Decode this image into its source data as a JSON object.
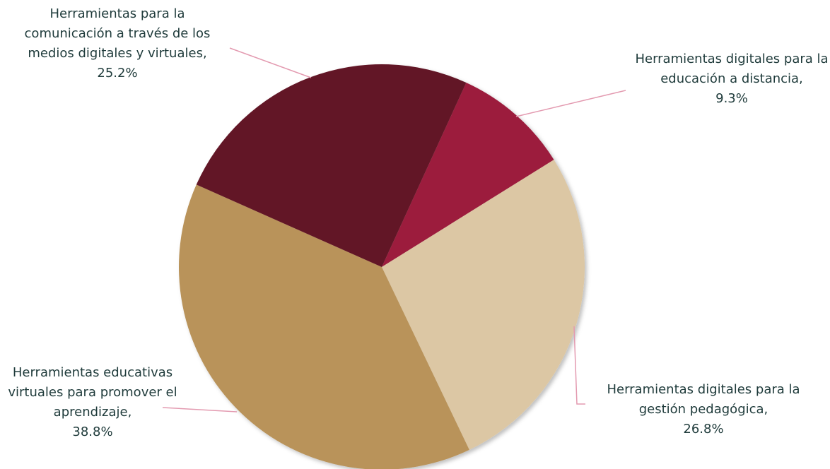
{
  "chart_data": {
    "type": "pie",
    "categories": [
      "Herramientas digitales para la educación a distancia,",
      "Herramientas digitales para la gestión pedagógica,",
      "Herramientas educativas virtuales para promover el aprendizaje,",
      "Herramientas para la comunicación a través de los medios digitales y virtuales,"
    ],
    "values": [
      9.3,
      26.8,
      38.8,
      25.2
    ],
    "value_labels": [
      "9.3%",
      "26.8%",
      "38.8%",
      "25.2%"
    ],
    "colors": [
      "#9c1f3e",
      "#dcc7a4",
      "#b9935a",
      "#621425"
    ]
  }
}
